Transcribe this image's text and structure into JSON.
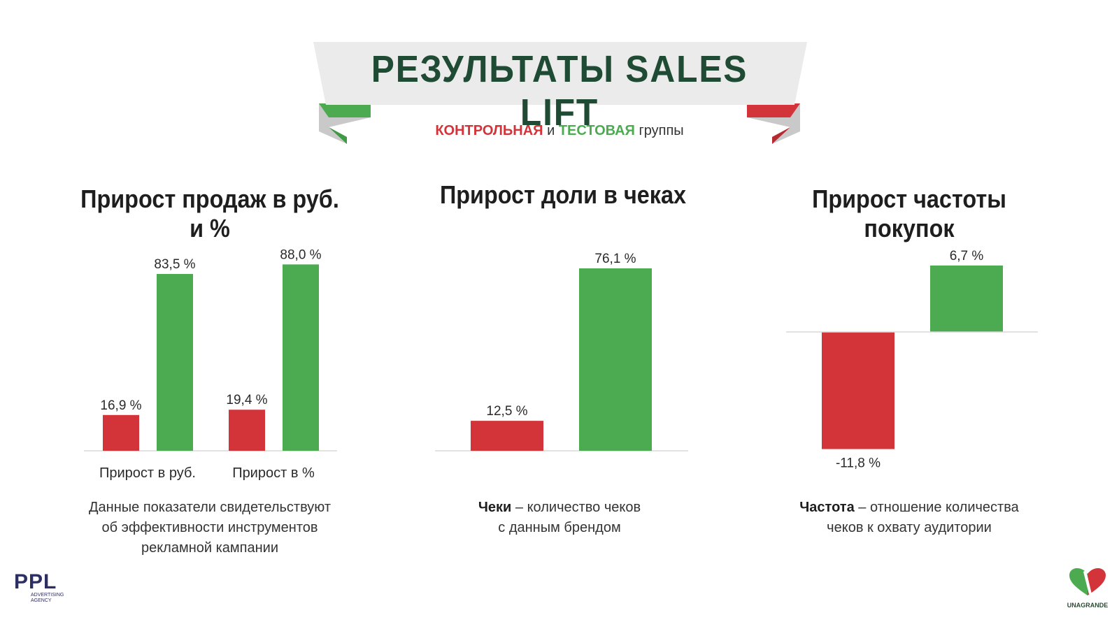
{
  "header": {
    "title": "РЕЗУЛЬТАТЫ SALES LIFT",
    "subtitle_control": "КОНТРОЛЬНАЯ",
    "subtitle_and": "и",
    "subtitle_test": "ТЕСТОВАЯ",
    "subtitle_groups": "группы"
  },
  "colors": {
    "control": "#d3343a",
    "test": "#4cab51",
    "title": "#1f4a34"
  },
  "chart_data": [
    {
      "type": "bar",
      "title": "Прирост продаж в руб. и %",
      "categories": [
        "Прирост в руб.",
        "Прирост в %"
      ],
      "series": [
        {
          "values": [
            16.9,
            19.4
          ],
          "labels": [
            "16,9 %",
            "19,4 %"
          ]
        },
        {
          "values": [
            83.5,
            88.0
          ],
          "labels": [
            "83,5 %",
            "88,0 %"
          ]
        }
      ]
    },
    {
      "type": "bar",
      "title": "Прирост доли в чеках",
      "categories": [
        ""
      ],
      "series": [
        {
          "values": [
            12.5
          ],
          "labels": [
            "12,5 %"
          ]
        },
        {
          "values": [
            76.1
          ],
          "labels": [
            "76,1 %"
          ]
        }
      ]
    },
    {
      "type": "bar",
      "title": "Прирост частоты покупок",
      "categories": [
        ""
      ],
      "series": [
        {
          "values": [
            -11.8
          ],
          "labels": [
            "-11,8 %"
          ]
        },
        {
          "values": [
            6.7
          ],
          "labels": [
            "6,7 %"
          ]
        }
      ]
    }
  ],
  "descriptions": {
    "sales": [
      "Данные показатели свидетельствуют",
      "об эффективности инструментов",
      "рекламной кампании"
    ],
    "checks_term": "Чеки",
    "checks_rest_line1": " – количество чеков",
    "checks_line2": "с данным брендом",
    "freq_term": "Частота",
    "freq_rest_line1": " – отношение количества",
    "freq_line2": "чеков к охвату аудитории"
  },
  "logos": {
    "ppl": "PPL",
    "ppl_sub1": "advertising",
    "ppl_sub2": "agency",
    "unagrande": "UNAGRANDE"
  }
}
